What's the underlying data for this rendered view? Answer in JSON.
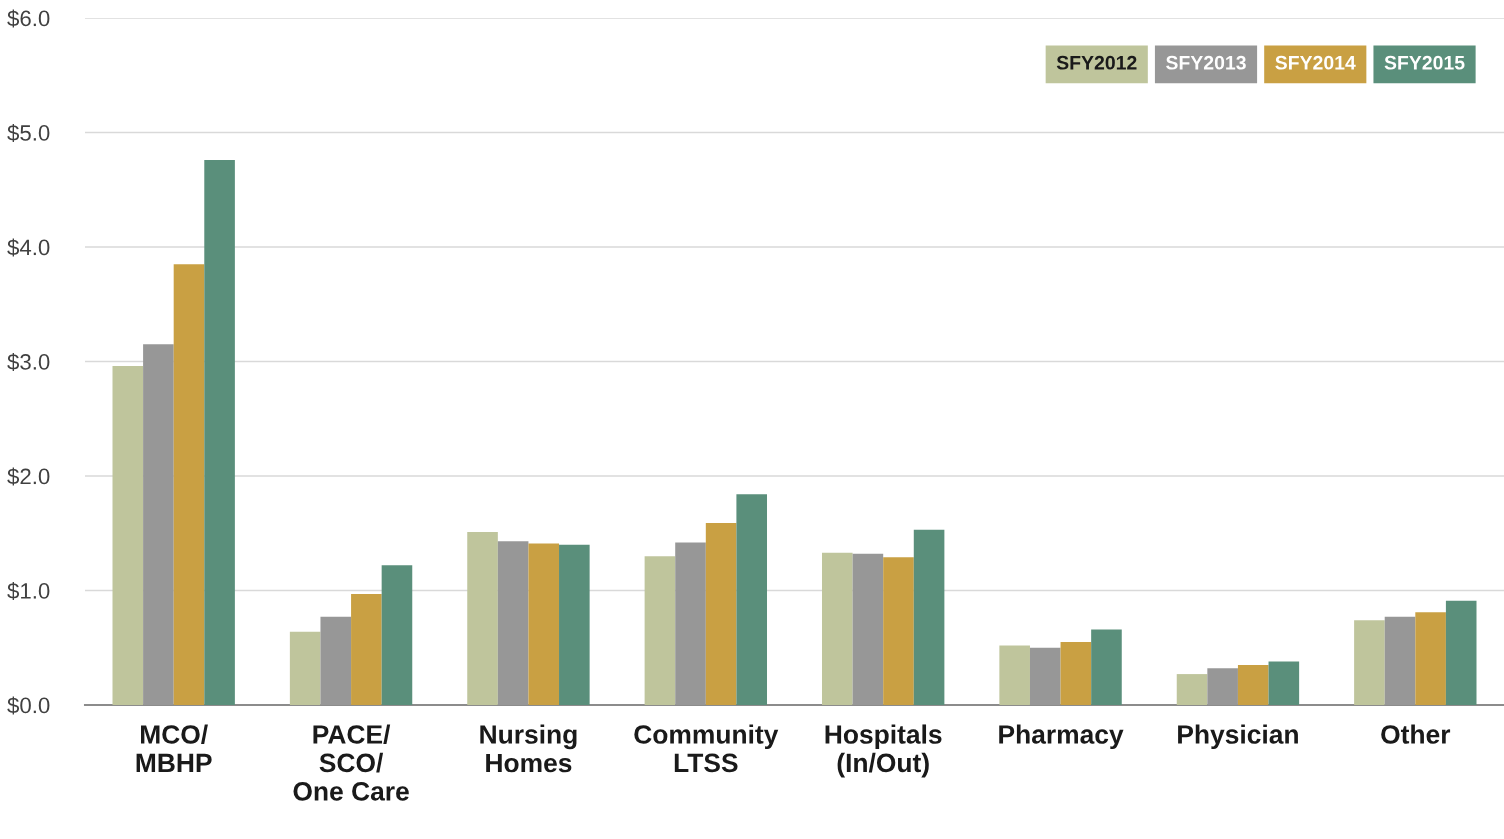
{
  "chart_data": {
    "type": "bar",
    "categories": [
      "MCO/\nMBHP",
      "PACE/\nSCO/\nOne Care",
      "Nursing\nHomes",
      "Community\nLTSS",
      "Hospitals\n(In/Out)",
      "Pharmacy",
      "Physician",
      "Other"
    ],
    "series": [
      {
        "name": "SFY2012",
        "color": "#bfc59c",
        "values": [
          2.96,
          0.64,
          1.51,
          1.3,
          1.33,
          0.52,
          0.27,
          0.74
        ]
      },
      {
        "name": "SFY2013",
        "color": "#979797",
        "values": [
          3.15,
          0.77,
          1.43,
          1.42,
          1.32,
          0.5,
          0.32,
          0.77
        ]
      },
      {
        "name": "SFY2014",
        "color": "#c9a043",
        "values": [
          3.85,
          0.97,
          1.41,
          1.59,
          1.29,
          0.55,
          0.35,
          0.81
        ]
      },
      {
        "name": "SFY2015",
        "color": "#5a8f7b",
        "values": [
          4.76,
          1.22,
          1.4,
          1.84,
          1.53,
          0.66,
          0.38,
          0.91
        ]
      }
    ],
    "ylim": [
      0,
      6
    ],
    "yticks": [
      {
        "value": 0,
        "label": "$0.0"
      },
      {
        "value": 1,
        "label": "$1.0"
      },
      {
        "value": 2,
        "label": "$2.0"
      },
      {
        "value": 3,
        "label": "$3.0"
      },
      {
        "value": 4,
        "label": "$4.0"
      },
      {
        "value": 5,
        "label": "$5.0"
      },
      {
        "value": 6,
        "label": "$6.0"
      }
    ],
    "grid": "y",
    "legend": "top right"
  }
}
